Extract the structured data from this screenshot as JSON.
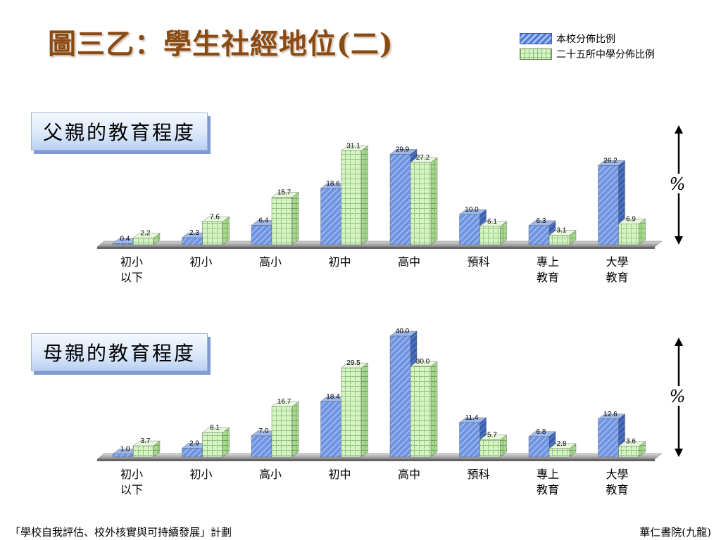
{
  "slide": {
    "title": "圖三乙：學生社經地位(二)",
    "footer_left": "「學校自我評估、校外核實與可持續發展」計劃",
    "footer_right": "華仁書院(九龍)"
  },
  "legend": {
    "school": "本校分佈比例",
    "average": "二十五所中學分佈比例"
  },
  "colors": {
    "school": "#4d79d8",
    "average": "#cdeeb6",
    "title": "#8a4a14"
  },
  "chart_data": [
    {
      "type": "bar",
      "title": "父親的教育程度",
      "unit_label": "%",
      "categories": [
        "初小\n以下",
        "初小",
        "高小",
        "初中",
        "高中",
        "預科",
        "專上\n教育",
        "大學\n教育"
      ],
      "series": [
        {
          "name": "本校分佈比例",
          "values": [
            0.4,
            2.3,
            6.4,
            18.6,
            29.9,
            10.0,
            6.3,
            26.2
          ],
          "labels": [
            "0.4",
            "2.3",
            "6.4",
            "18.6",
            "29.9",
            "10.0",
            "6.3",
            "26.2"
          ]
        },
        {
          "name": "二十五所中學分佈比例",
          "values": [
            2.2,
            7.6,
            15.7,
            31.1,
            27.2,
            6.1,
            3.1,
            6.9
          ],
          "labels": [
            "2.2",
            "7.6",
            "15.7",
            "31.1",
            "27.2",
            "6.1",
            "3.1",
            "6.9"
          ]
        }
      ],
      "ylim": [
        0,
        32
      ]
    },
    {
      "type": "bar",
      "title": "母親的教育程度",
      "unit_label": "%",
      "categories": [
        "初小\n以下",
        "初小",
        "高小",
        "初中",
        "高中",
        "預科",
        "專上\n教育",
        "大學\n教育"
      ],
      "series": [
        {
          "name": "本校分佈比例",
          "values": [
            1.0,
            2.9,
            7.0,
            18.4,
            40.0,
            11.4,
            6.8,
            12.6
          ],
          "labels": [
            "1.0",
            "2.9",
            "7.0",
            "18.4",
            "40.0",
            "11.4",
            "6.8",
            "12.6"
          ]
        },
        {
          "name": "二十五所中學分佈比例",
          "values": [
            3.7,
            8.1,
            16.7,
            29.5,
            30.0,
            5.7,
            2.8,
            3.6
          ],
          "labels": [
            "3.7",
            "8.1",
            "16.7",
            "29.5",
            "30.0",
            "5.7",
            "2.8",
            "3.6"
          ]
        }
      ],
      "ylim": [
        0,
        40
      ]
    }
  ]
}
